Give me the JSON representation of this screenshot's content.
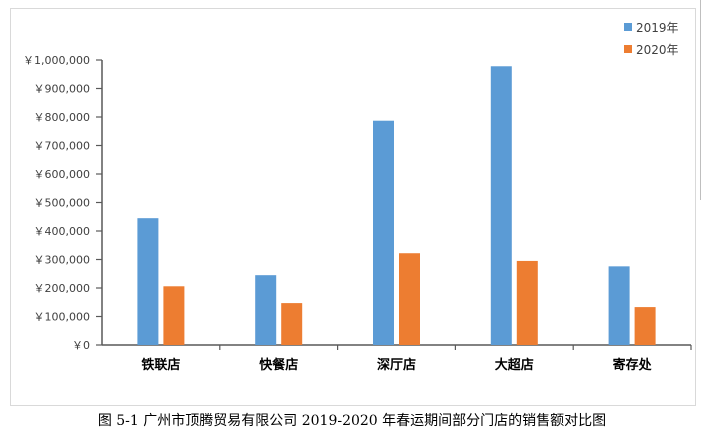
{
  "caption": "图 5-1  广州市顶腾贸易有限公司 2019-2020 年春运期间部分门店的销售额对比图",
  "chart_data": {
    "type": "bar",
    "title": "",
    "xlabel": "",
    "ylabel": "",
    "categories": [
      "铁联店",
      "快餐店",
      "深厅店",
      "大超店",
      "寄存处"
    ],
    "series": [
      {
        "name": "2019年",
        "color": "#5b9bd5",
        "values": [
          445000,
          245000,
          787000,
          978000,
          276000
        ]
      },
      {
        "name": "2020年",
        "color": "#ed7d31",
        "values": [
          206000,
          147000,
          322000,
          295000,
          133000
        ]
      }
    ],
    "ylim": [
      0,
      1000000
    ],
    "yticks": [
      0,
      100000,
      200000,
      300000,
      400000,
      500000,
      600000,
      700000,
      800000,
      900000,
      1000000
    ],
    "ytick_labels": [
      "￥0",
      "￥100,000",
      "￥200,000",
      "￥300,000",
      "￥400,000",
      "￥500,000",
      "￥600,000",
      "￥700,000",
      "￥800,000",
      "￥900,000",
      "￥1,000,000"
    ],
    "grid": false,
    "legend_position": "top-right"
  }
}
